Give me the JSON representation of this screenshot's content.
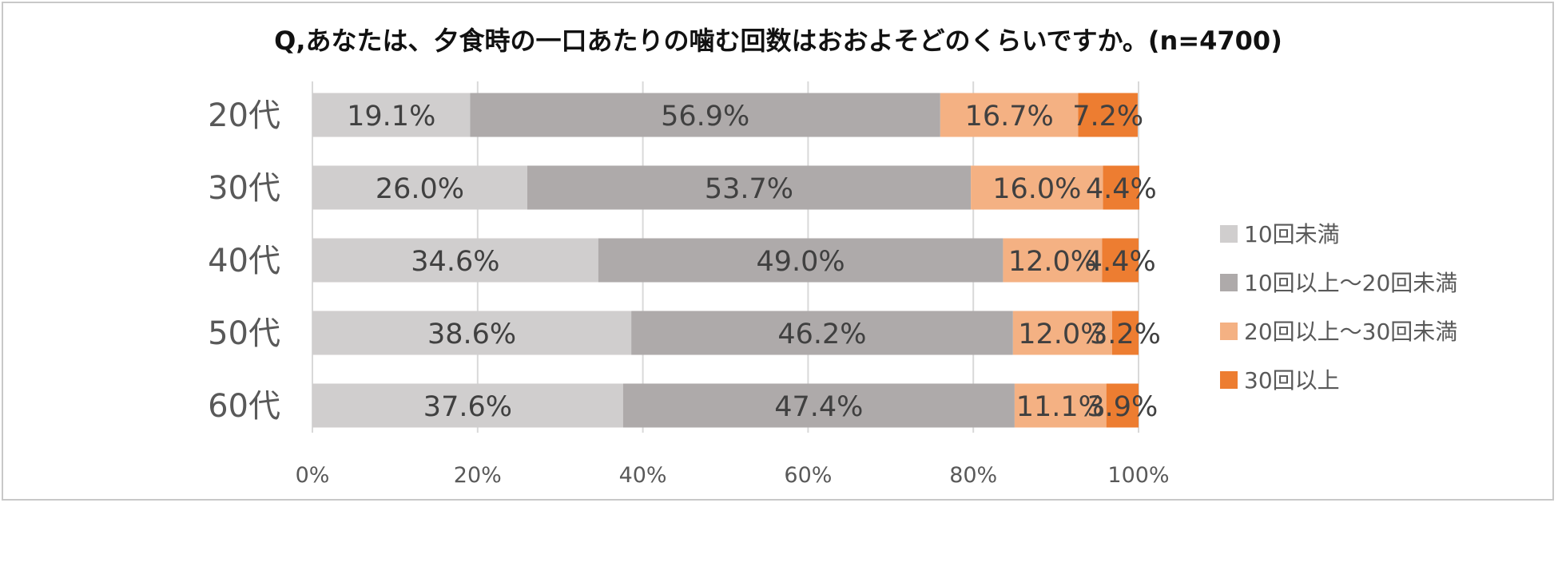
{
  "chart_data": {
    "type": "bar",
    "orientation": "horizontal",
    "stacked": true,
    "title": "Q,あなたは、夕食時の一口あたりの噛む回数はおおよそどのくらいですか。(n=4700)",
    "categories": [
      "20代",
      "30代",
      "40代",
      "50代",
      "60代"
    ],
    "series": [
      {
        "name": "10回未満",
        "color": "#d0cece",
        "values": [
          19.1,
          26.0,
          34.6,
          38.6,
          37.6
        ]
      },
      {
        "name": "10回以上～20回未満",
        "color": "#aeaaaa",
        "values": [
          56.9,
          53.7,
          49.0,
          46.2,
          47.4
        ]
      },
      {
        "name": "20回以上～30回未満",
        "color": "#f4b183",
        "values": [
          16.7,
          16.0,
          12.0,
          12.0,
          11.1
        ]
      },
      {
        "name": "30回以上",
        "color": "#ed7d31",
        "values": [
          7.2,
          4.4,
          4.4,
          3.2,
          3.9
        ]
      }
    ],
    "xlim": [
      0,
      100
    ],
    "xticks": [
      "0%",
      "20%",
      "40%",
      "60%",
      "80%",
      "100%"
    ],
    "grid": true,
    "legend_position": "right"
  }
}
